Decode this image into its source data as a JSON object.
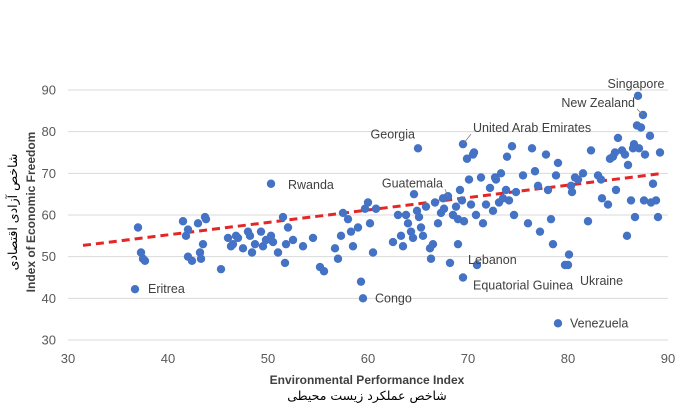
{
  "chart_data": {
    "type": "scatter",
    "xlabel": "Environmental Performance Index",
    "xlabel_fa": "شاخص عملکرد زیست محیطی",
    "ylabel": "Index of Economic Freedom",
    "ylabel_fa": "شاخص آزادی اقتصادی",
    "xlim": [
      30,
      90
    ],
    "ylim": [
      30,
      90
    ],
    "xticks": [
      "30",
      "40",
      "50",
      "60",
      "70",
      "80",
      "90"
    ],
    "yticks": [
      "30",
      "40",
      "50",
      "60",
      "70",
      "80",
      "90"
    ],
    "grid": "horizontal",
    "point_color": "#4472C4",
    "trendline": {
      "style": "dashed",
      "color": "#E32626",
      "points": [
        [
          31.5,
          52.7
        ],
        [
          89.5,
          70
        ]
      ]
    },
    "labeled_points": [
      {
        "name": "Singapore",
        "x": 87,
        "y": 88.6
      },
      {
        "name": "New Zealand",
        "x": 87.5,
        "y": 84
      },
      {
        "name": "United Arab Emirates",
        "x": 69.5,
        "y": 77
      },
      {
        "name": "Georgia",
        "x": 65,
        "y": 76
      },
      {
        "name": "Rwanda",
        "x": 50.3,
        "y": 67.5
      },
      {
        "name": "Guatemala",
        "x": 68,
        "y": 64.5
      },
      {
        "name": "Lebanon",
        "x": 69,
        "y": 53
      },
      {
        "name": "Ukraine",
        "x": 80,
        "y": 48
      },
      {
        "name": "Equatorial Guinea",
        "x": 69.5,
        "y": 45
      },
      {
        "name": "Eritrea",
        "x": 36.7,
        "y": 42.2
      },
      {
        "name": "Congo",
        "x": 59.5,
        "y": 40
      },
      {
        "name": "Venezuela",
        "x": 79,
        "y": 34
      }
    ],
    "points": [
      [
        37,
        57
      ],
      [
        37.3,
        51
      ],
      [
        37.5,
        49.5
      ],
      [
        37.7,
        49
      ],
      [
        41.5,
        58.5
      ],
      [
        41.8,
        55
      ],
      [
        42,
        56.5
      ],
      [
        42,
        50
      ],
      [
        42.4,
        49
      ],
      [
        43,
        58
      ],
      [
        43.2,
        51
      ],
      [
        43.3,
        49.5
      ],
      [
        43.5,
        53
      ],
      [
        43.7,
        59.5
      ],
      [
        43.8,
        59
      ],
      [
        45.3,
        47
      ],
      [
        46,
        54.5
      ],
      [
        46.3,
        52.5
      ],
      [
        46.5,
        53
      ],
      [
        46.8,
        55
      ],
      [
        47,
        54.5
      ],
      [
        47.5,
        52
      ],
      [
        48,
        56
      ],
      [
        48.2,
        55
      ],
      [
        48.4,
        51
      ],
      [
        48.7,
        53
      ],
      [
        49.3,
        56
      ],
      [
        49.5,
        52.5
      ],
      [
        49.8,
        54
      ],
      [
        50.3,
        55
      ],
      [
        50.5,
        53.5
      ],
      [
        51,
        51
      ],
      [
        51.5,
        59.5
      ],
      [
        51.7,
        48.5
      ],
      [
        51.8,
        53
      ],
      [
        52,
        57
      ],
      [
        52.5,
        54
      ],
      [
        53.5,
        52.5
      ],
      [
        54.5,
        54.5
      ],
      [
        55.2,
        47.5
      ],
      [
        55.6,
        46.5
      ],
      [
        56.7,
        52
      ],
      [
        57,
        49.5
      ],
      [
        57.3,
        55
      ],
      [
        57.5,
        60.5
      ],
      [
        58,
        59
      ],
      [
        58.3,
        56
      ],
      [
        58.5,
        52.5
      ],
      [
        59,
        57
      ],
      [
        59.3,
        44
      ],
      [
        59.7,
        61.5
      ],
      [
        60,
        63
      ],
      [
        60.2,
        58
      ],
      [
        60.5,
        51
      ],
      [
        60.8,
        61.5
      ],
      [
        62.5,
        53.5
      ],
      [
        63,
        60
      ],
      [
        63.3,
        55
      ],
      [
        63.5,
        52.5
      ],
      [
        63.8,
        60
      ],
      [
        64,
        58
      ],
      [
        64.3,
        56
      ],
      [
        64.5,
        54.5
      ],
      [
        64.6,
        65
      ],
      [
        64.9,
        61
      ],
      [
        65.1,
        59.5
      ],
      [
        65.3,
        57
      ],
      [
        65.5,
        55
      ],
      [
        65.8,
        62
      ],
      [
        66.2,
        52
      ],
      [
        66.3,
        49.5
      ],
      [
        66.5,
        53
      ],
      [
        66.7,
        63
      ],
      [
        67,
        58
      ],
      [
        67.3,
        60.5
      ],
      [
        67.5,
        64
      ],
      [
        67.6,
        61.5
      ],
      [
        68.2,
        48.5
      ],
      [
        68.5,
        60
      ],
      [
        68.8,
        62
      ],
      [
        69,
        59
      ],
      [
        69.2,
        66
      ],
      [
        69.4,
        63.5
      ],
      [
        69.6,
        58.5
      ],
      [
        69.9,
        73.5
      ],
      [
        70.1,
        68.5
      ],
      [
        70.3,
        62.5
      ],
      [
        70.5,
        74.5
      ],
      [
        70.6,
        75
      ],
      [
        70.8,
        60
      ],
      [
        70.9,
        48
      ],
      [
        71.3,
        69
      ],
      [
        71.5,
        58
      ],
      [
        71.8,
        62.5
      ],
      [
        72.2,
        66.5
      ],
      [
        72.5,
        61
      ],
      [
        72.7,
        69
      ],
      [
        72.8,
        68.5
      ],
      [
        73.1,
        63
      ],
      [
        73.3,
        70
      ],
      [
        73.5,
        64
      ],
      [
        73.8,
        66
      ],
      [
        73.9,
        74
      ],
      [
        74.1,
        63.5
      ],
      [
        74.4,
        76.5
      ],
      [
        74.6,
        60
      ],
      [
        74.8,
        65.5
      ],
      [
        75.5,
        69.5
      ],
      [
        76,
        58
      ],
      [
        76.4,
        76
      ],
      [
        76.7,
        70.5
      ],
      [
        77,
        67
      ],
      [
        77.2,
        56
      ],
      [
        77.8,
        74.5
      ],
      [
        78,
        66
      ],
      [
        78.3,
        59
      ],
      [
        78.5,
        53
      ],
      [
        78.8,
        69.5
      ],
      [
        79,
        72.5
      ],
      [
        79.7,
        48
      ],
      [
        80.1,
        50.5
      ],
      [
        80.3,
        67
      ],
      [
        80.4,
        65.5
      ],
      [
        80.7,
        69
      ],
      [
        81,
        68.5
      ],
      [
        81.5,
        70
      ],
      [
        82,
        58.5
      ],
      [
        82.3,
        75.5
      ],
      [
        83,
        69.5
      ],
      [
        83.3,
        68.5
      ],
      [
        83.4,
        64
      ],
      [
        84,
        62.5
      ],
      [
        84.2,
        73.5
      ],
      [
        84.5,
        74
      ],
      [
        84.7,
        75
      ],
      [
        84.8,
        66
      ],
      [
        85,
        78.5
      ],
      [
        85.4,
        75.5
      ],
      [
        85.7,
        74.5
      ],
      [
        85.9,
        55
      ],
      [
        86,
        72
      ],
      [
        86.3,
        63.5
      ],
      [
        86.5,
        76
      ],
      [
        86.6,
        77
      ],
      [
        86.7,
        59.5
      ],
      [
        86.9,
        81.5
      ],
      [
        87.1,
        76
      ],
      [
        87.3,
        81
      ],
      [
        87.6,
        63.5
      ],
      [
        87.7,
        74.5
      ],
      [
        88.2,
        79
      ],
      [
        88.3,
        63
      ],
      [
        88.5,
        67.5
      ],
      [
        88.8,
        63.5
      ],
      [
        89,
        59.5
      ],
      [
        89.2,
        75
      ]
    ]
  }
}
